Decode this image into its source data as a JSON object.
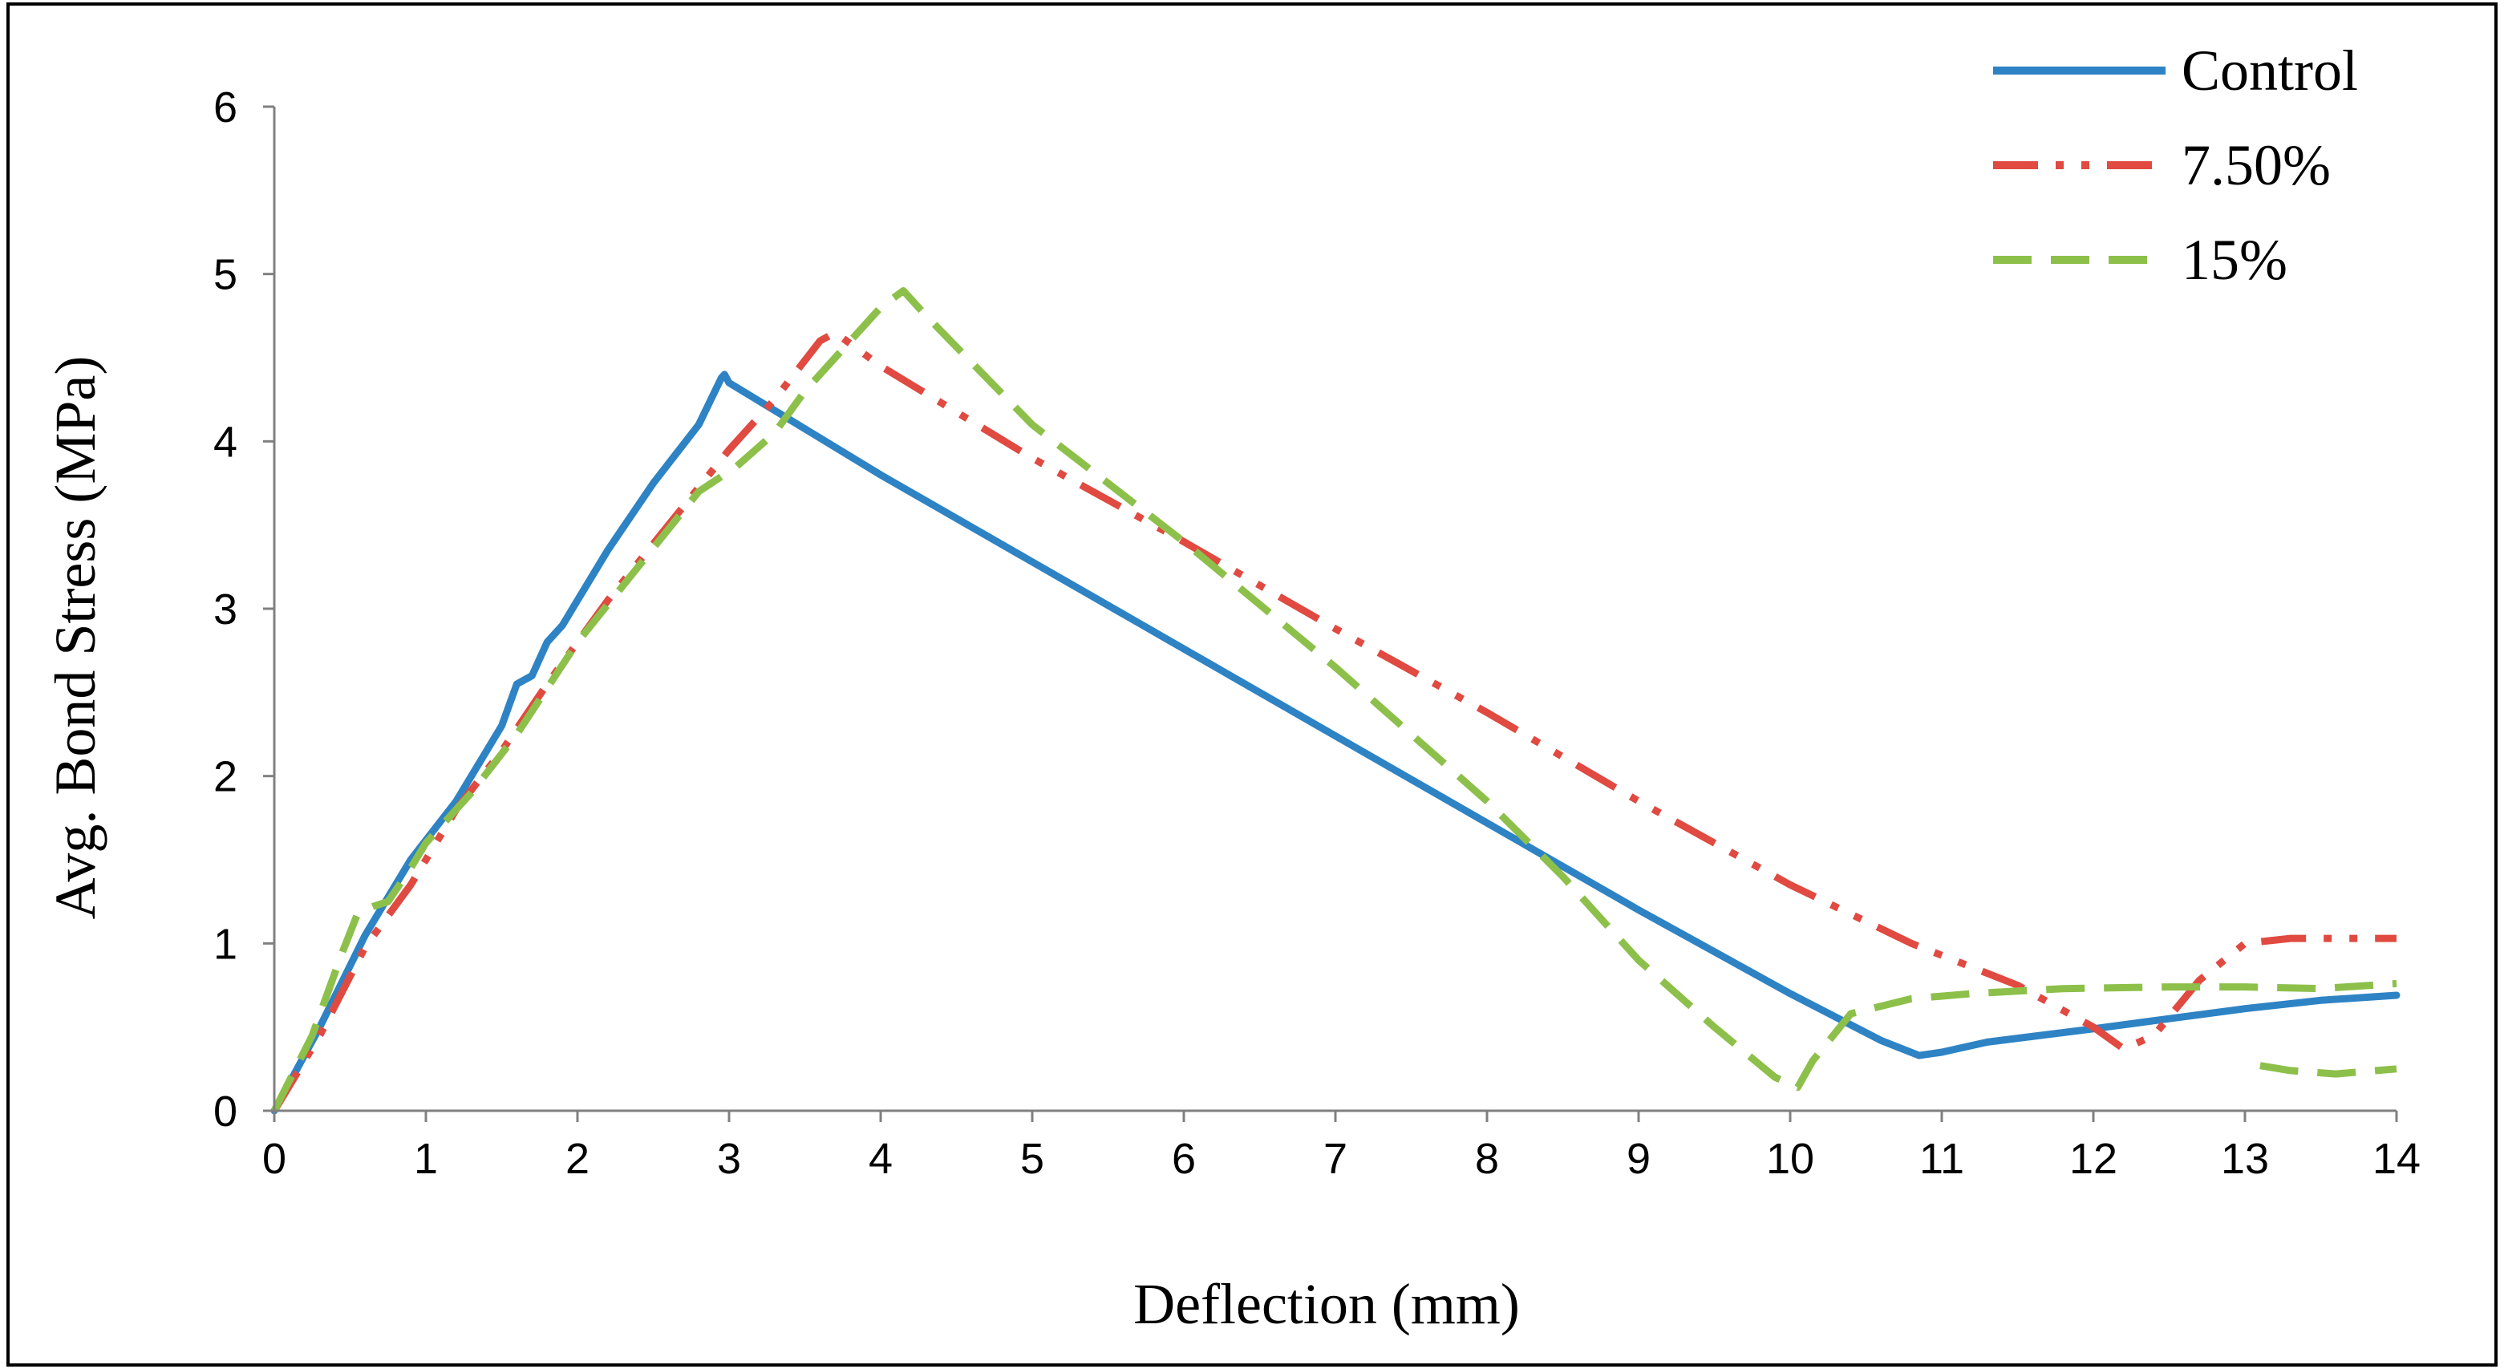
{
  "chart_data": {
    "type": "line",
    "title": "",
    "xlabel": "Deflection (mm)",
    "ylabel": "Avg. Bond Stress (MPa)",
    "xlim": [
      0,
      14
    ],
    "ylim": [
      0,
      6
    ],
    "x_ticks": [
      "0",
      "1",
      "2",
      "3",
      "4",
      "5",
      "6",
      "7",
      "8",
      "9",
      "10",
      "11",
      "12",
      "13",
      "14"
    ],
    "y_ticks": [
      "0",
      "1",
      "2",
      "3",
      "4",
      "5",
      "6"
    ],
    "grid": false,
    "legend_position": "top-right",
    "series": [
      {
        "name": "Control",
        "color": "#2E83C4",
        "dash": "solid",
        "points": [
          [
            0,
            0
          ],
          [
            0.3,
            0.5
          ],
          [
            0.6,
            1.05
          ],
          [
            0.9,
            1.5
          ],
          [
            1.2,
            1.85
          ],
          [
            1.5,
            2.3
          ],
          [
            1.6,
            2.55
          ],
          [
            1.7,
            2.6
          ],
          [
            1.8,
            2.8
          ],
          [
            1.9,
            2.9
          ],
          [
            2.0,
            3.05
          ],
          [
            2.2,
            3.35
          ],
          [
            2.5,
            3.75
          ],
          [
            2.8,
            4.1
          ],
          [
            2.95,
            4.38
          ],
          [
            2.97,
            4.4
          ],
          [
            3.0,
            4.35
          ],
          [
            4.0,
            3.8
          ],
          [
            5.0,
            3.28
          ],
          [
            6.0,
            2.76
          ],
          [
            7.0,
            2.24
          ],
          [
            8.0,
            1.72
          ],
          [
            9.0,
            1.2
          ],
          [
            10.0,
            0.7
          ],
          [
            10.6,
            0.42
          ],
          [
            10.85,
            0.33
          ],
          [
            11.0,
            0.35
          ],
          [
            11.3,
            0.41
          ],
          [
            12.0,
            0.49
          ],
          [
            12.5,
            0.55
          ],
          [
            13.0,
            0.61
          ],
          [
            13.5,
            0.66
          ],
          [
            14.0,
            0.69
          ]
        ]
      },
      {
        "name": "7.50%",
        "color": "#E04A41",
        "dash": "dash-dot-dot",
        "points": [
          [
            0,
            0
          ],
          [
            0.3,
            0.45
          ],
          [
            0.6,
            0.98
          ],
          [
            0.9,
            1.35
          ],
          [
            1.2,
            1.8
          ],
          [
            1.5,
            2.15
          ],
          [
            1.8,
            2.55
          ],
          [
            2.2,
            3.05
          ],
          [
            2.6,
            3.5
          ],
          [
            3.0,
            3.95
          ],
          [
            3.3,
            4.25
          ],
          [
            3.6,
            4.6
          ],
          [
            3.7,
            4.65
          ],
          [
            4.0,
            4.45
          ],
          [
            5.0,
            3.9
          ],
          [
            6.0,
            3.4
          ],
          [
            7.0,
            2.88
          ],
          [
            8.0,
            2.38
          ],
          [
            9.0,
            1.85
          ],
          [
            10.0,
            1.35
          ],
          [
            10.8,
            1.0
          ],
          [
            11.5,
            0.75
          ],
          [
            12.0,
            0.5
          ],
          [
            12.2,
            0.37
          ],
          [
            12.4,
            0.45
          ],
          [
            12.7,
            0.78
          ],
          [
            13.0,
            1.0
          ],
          [
            13.3,
            1.03
          ],
          [
            14.0,
            1.03
          ]
        ]
      },
      {
        "name": "15%",
        "color": "#8DC04A",
        "dash": "dashed",
        "points": [
          [
            0,
            0
          ],
          [
            0.25,
            0.45
          ],
          [
            0.45,
            0.95
          ],
          [
            0.55,
            1.18
          ],
          [
            0.65,
            1.22
          ],
          [
            0.75,
            1.25
          ],
          [
            0.9,
            1.45
          ],
          [
            1.0,
            1.6
          ],
          [
            1.3,
            1.9
          ],
          [
            1.6,
            2.25
          ],
          [
            2.0,
            2.8
          ],
          [
            2.4,
            3.25
          ],
          [
            2.8,
            3.7
          ],
          [
            3.05,
            3.85
          ],
          [
            3.3,
            4.05
          ],
          [
            3.5,
            4.3
          ],
          [
            3.8,
            4.6
          ],
          [
            4.0,
            4.8
          ],
          [
            4.15,
            4.9
          ],
          [
            4.3,
            4.75
          ],
          [
            5.0,
            4.1
          ],
          [
            6.0,
            3.4
          ],
          [
            7.0,
            2.65
          ],
          [
            8.0,
            1.85
          ],
          [
            8.5,
            1.4
          ],
          [
            9.0,
            0.9
          ],
          [
            9.5,
            0.5
          ],
          [
            9.9,
            0.2
          ],
          [
            10.05,
            0.14
          ],
          [
            10.15,
            0.3
          ],
          [
            10.4,
            0.58
          ],
          [
            10.8,
            0.67
          ],
          [
            11.2,
            0.7
          ],
          [
            11.8,
            0.73
          ],
          [
            12.5,
            0.74
          ],
          [
            13.0,
            0.74
          ],
          [
            13.5,
            0.73
          ],
          [
            14.0,
            0.76
          ]
        ]
      },
      {
        "name": "15% (tail)",
        "legend": false,
        "color": "#8DC04A",
        "dash": "dashed",
        "points": [
          [
            13.1,
            0.27
          ],
          [
            13.3,
            0.24
          ],
          [
            13.6,
            0.22
          ],
          [
            14.0,
            0.25
          ]
        ]
      }
    ]
  }
}
